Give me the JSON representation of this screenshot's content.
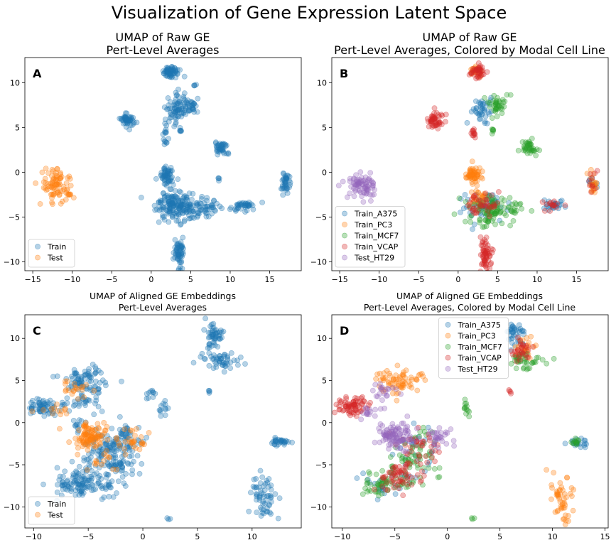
{
  "figure": {
    "suptitle": "Visualization of Gene Expression Latent Space"
  },
  "colors": {
    "train": "#1f77b4",
    "test": "#ff7f0e",
    "Train_A375": "#1f77b4",
    "Train_PC3": "#ff7f0e",
    "Train_MCF7": "#2ca02c",
    "Train_VCAP": "#d62728",
    "Test_HT29": "#9467bd"
  },
  "chart_data": [
    {
      "panel": "A",
      "type": "scatter",
      "title": "UMAP of  Raw GE",
      "subtitle": "Pert-Level Averages",
      "xlim": [
        -16,
        19
      ],
      "ylim": [
        -11,
        12.8
      ],
      "xticks": [
        -15,
        -10,
        -5,
        0,
        5,
        10,
        15
      ],
      "yticks": [
        10,
        5,
        0,
        -5,
        -10
      ],
      "legend": {
        "position": "lower-left",
        "entries": [
          "Train",
          "Test"
        ]
      },
      "series": [
        {
          "name": "Train",
          "color_key": "train",
          "clusters": [
            {
              "cx": 2.5,
              "cy": 11.2,
              "sx": 0.5,
              "sy": 0.3,
              "n": 60
            },
            {
              "cx": 3.0,
              "cy": 7.0,
              "sx": 0.6,
              "sy": 0.8,
              "n": 60
            },
            {
              "cx": 5.0,
              "cy": 7.5,
              "sx": 0.6,
              "sy": 0.5,
              "n": 40
            },
            {
              "cx": -3.0,
              "cy": 5.8,
              "sx": 0.5,
              "sy": 0.4,
              "n": 50
            },
            {
              "cx": 1.8,
              "cy": 4.0,
              "sx": 0.15,
              "sy": 0.6,
              "n": 15
            },
            {
              "cx": 3.8,
              "cy": 4.7,
              "sx": 0.15,
              "sy": 0.15,
              "n": 6
            },
            {
              "cx": 8.9,
              "cy": 2.7,
              "sx": 0.4,
              "sy": 0.4,
              "n": 40
            },
            {
              "cx": 2.0,
              "cy": -0.3,
              "sx": 0.5,
              "sy": 0.5,
              "n": 60
            },
            {
              "cx": 3.2,
              "cy": -3.7,
              "sx": 1.3,
              "sy": 0.8,
              "n": 160
            },
            {
              "cx": 6.5,
              "cy": -4.0,
              "sx": 1.3,
              "sy": 0.5,
              "n": 60
            },
            {
              "cx": 3.5,
              "cy": -9.0,
              "sx": 0.35,
              "sy": 0.9,
              "n": 60
            },
            {
              "cx": 12.0,
              "cy": -3.7,
              "sx": 0.8,
              "sy": 0.3,
              "n": 40
            },
            {
              "cx": 17.0,
              "cy": -1.3,
              "sx": 0.3,
              "sy": 0.6,
              "n": 40
            },
            {
              "cx": 8.5,
              "cy": -0.8,
              "sx": 0.1,
              "sy": 0.1,
              "n": 4
            },
            {
              "cx": 5.5,
              "cy": 9.7,
              "sx": 0.1,
              "sy": 0.1,
              "n": 4
            }
          ]
        },
        {
          "name": "Test",
          "color_key": "test",
          "clusters": [
            {
              "cx": -12.0,
              "cy": -1.5,
              "sx": 1.0,
              "sy": 0.8,
              "n": 80
            },
            {
              "cx": -10.2,
              "cy": -2.5,
              "sx": 0.2,
              "sy": 0.2,
              "n": 6
            }
          ]
        }
      ]
    },
    {
      "panel": "B",
      "type": "scatter",
      "title": "UMAP of Raw GE",
      "subtitle": "Pert-Level Averages, Colored by Modal Cell Line",
      "xlim": [
        -16,
        19
      ],
      "ylim": [
        -11,
        12.8
      ],
      "xticks": [
        -15,
        -10,
        -5,
        0,
        5,
        10,
        15
      ],
      "yticks": [
        10,
        5,
        0,
        -5,
        -10
      ],
      "legend": {
        "position": "lower-left",
        "entries": [
          "Train_A375",
          "Train_PC3",
          "Train_MCF7",
          "Train_VCAP",
          "Test_HT29"
        ]
      },
      "series": [
        {
          "name": "Train_A375",
          "color_key": "Train_A375",
          "clusters": [
            {
              "cx": 3.0,
              "cy": 7.0,
              "sx": 0.6,
              "sy": 0.8,
              "n": 40
            },
            {
              "cx": 3.2,
              "cy": -3.7,
              "sx": 1.3,
              "sy": 0.8,
              "n": 50
            },
            {
              "cx": 12.0,
              "cy": -3.7,
              "sx": 0.8,
              "sy": 0.3,
              "n": 25
            },
            {
              "cx": 17.0,
              "cy": -1.3,
              "sx": 0.3,
              "sy": 0.6,
              "n": 10
            }
          ]
        },
        {
          "name": "Train_PC3",
          "color_key": "Train_PC3",
          "clusters": [
            {
              "cx": 2.0,
              "cy": -0.3,
              "sx": 0.5,
              "sy": 0.5,
              "n": 60
            },
            {
              "cx": 2.5,
              "cy": 11.2,
              "sx": 0.5,
              "sy": 0.3,
              "n": 20
            },
            {
              "cx": 17.0,
              "cy": -1.3,
              "sx": 0.3,
              "sy": 0.6,
              "n": 20
            },
            {
              "cx": 2.5,
              "cy": -3.0,
              "sx": 0.8,
              "sy": 0.6,
              "n": 30
            }
          ]
        },
        {
          "name": "Train_MCF7",
          "color_key": "Train_MCF7",
          "clusters": [
            {
              "cx": 5.0,
              "cy": 7.5,
              "sx": 0.6,
              "sy": 0.5,
              "n": 40
            },
            {
              "cx": 8.9,
              "cy": 2.7,
              "sx": 0.4,
              "sy": 0.4,
              "n": 40
            },
            {
              "cx": 4.0,
              "cy": -4.5,
              "sx": 1.3,
              "sy": 0.8,
              "n": 80
            },
            {
              "cx": 6.5,
              "cy": -4.0,
              "sx": 1.3,
              "sy": 0.5,
              "n": 30
            },
            {
              "cx": 4.3,
              "cy": 4.7,
              "sx": 0.15,
              "sy": 0.15,
              "n": 6
            }
          ]
        },
        {
          "name": "Train_VCAP",
          "color_key": "Train_VCAP",
          "clusters": [
            {
              "cx": -3.0,
              "cy": 5.8,
              "sx": 0.5,
              "sy": 0.4,
              "n": 50
            },
            {
              "cx": 3.5,
              "cy": -9.0,
              "sx": 0.35,
              "sy": 0.9,
              "n": 60
            },
            {
              "cx": 2.5,
              "cy": 11.2,
              "sx": 0.5,
              "sy": 0.3,
              "n": 40
            },
            {
              "cx": 2.0,
              "cy": 4.0,
              "sx": 0.15,
              "sy": 0.6,
              "n": 12
            },
            {
              "cx": 3.0,
              "cy": -3.8,
              "sx": 1.2,
              "sy": 0.7,
              "n": 40
            },
            {
              "cx": 12.0,
              "cy": -3.7,
              "sx": 0.8,
              "sy": 0.3,
              "n": 15
            },
            {
              "cx": 17.0,
              "cy": -1.3,
              "sx": 0.3,
              "sy": 0.6,
              "n": 10
            }
          ]
        },
        {
          "name": "Test_HT29",
          "color_key": "Test_HT29",
          "clusters": [
            {
              "cx": -12.0,
              "cy": -1.5,
              "sx": 1.0,
              "sy": 0.8,
              "n": 80
            }
          ]
        }
      ]
    },
    {
      "panel": "C",
      "type": "scatter",
      "title": "UMAP of Aligned GE Embeddings",
      "subtitle": "Pert-Level Averages",
      "xlim": [
        -10.8,
        14.5
      ],
      "ylim": [
        -12.5,
        12.8
      ],
      "xticks": [
        -10,
        -5,
        0,
        5,
        10
      ],
      "yticks": [
        10,
        5,
        0,
        -5,
        -10
      ],
      "legend": {
        "position": "lower-left",
        "entries": [
          "Train",
          "Test"
        ]
      },
      "series": [
        {
          "name": "Train",
          "color_key": "train",
          "clusters": [
            {
              "cx": 6.5,
              "cy": 10.5,
              "sx": 0.4,
              "sy": 0.8,
              "n": 50
            },
            {
              "cx": 7.5,
              "cy": 7.3,
              "sx": 1.0,
              "sy": 0.5,
              "n": 50
            },
            {
              "cx": -5.0,
              "cy": 5.0,
              "sx": 1.3,
              "sy": 0.8,
              "n": 80
            },
            {
              "cx": -9.0,
              "cy": 2.0,
              "sx": 0.8,
              "sy": 0.5,
              "n": 60
            },
            {
              "cx": -5.5,
              "cy": 2.5,
              "sx": 1.0,
              "sy": 0.6,
              "n": 30
            },
            {
              "cx": 0.8,
              "cy": 3.3,
              "sx": 0.3,
              "sy": 0.3,
              "n": 10
            },
            {
              "cx": 1.8,
              "cy": 1.5,
              "sx": 0.3,
              "sy": 0.6,
              "n": 12
            },
            {
              "cx": -3.0,
              "cy": -4.0,
              "sx": 1.2,
              "sy": 1.5,
              "n": 150
            },
            {
              "cx": -5.5,
              "cy": -7.3,
              "sx": 1.3,
              "sy": 0.7,
              "n": 120
            },
            {
              "cx": -1.5,
              "cy": -2.0,
              "sx": 0.8,
              "sy": 1.0,
              "n": 40
            },
            {
              "cx": 11.0,
              "cy": -9.0,
              "sx": 0.6,
              "sy": 1.3,
              "n": 60
            },
            {
              "cx": 12.5,
              "cy": -2.3,
              "sx": 0.5,
              "sy": 0.25,
              "n": 30
            },
            {
              "cx": -6.0,
              "cy": -0.5,
              "sx": 0.4,
              "sy": 0.4,
              "n": 12
            },
            {
              "cx": 6.0,
              "cy": 3.6,
              "sx": 0.1,
              "sy": 0.1,
              "n": 4
            },
            {
              "cx": 2.3,
              "cy": -11.4,
              "sx": 0.1,
              "sy": 0.1,
              "n": 3
            }
          ]
        },
        {
          "name": "Test",
          "color_key": "test",
          "clusters": [
            {
              "cx": -4.8,
              "cy": -1.5,
              "sx": 0.8,
              "sy": 0.7,
              "n": 100
            },
            {
              "cx": -1.0,
              "cy": -2.0,
              "sx": 0.7,
              "sy": 0.7,
              "n": 30
            },
            {
              "cx": -6.0,
              "cy": 4.0,
              "sx": 0.8,
              "sy": 0.6,
              "n": 20
            },
            {
              "cx": -8.0,
              "cy": 1.5,
              "sx": 0.6,
              "sy": 0.4,
              "n": 12
            },
            {
              "cx": -3.5,
              "cy": -4.5,
              "sx": 0.8,
              "sy": 0.8,
              "n": 15
            }
          ]
        }
      ]
    },
    {
      "panel": "D",
      "type": "scatter",
      "title": "UMAP of Aligned GE Embeddings",
      "subtitle": "Pert-Level Averages, Colored by Modal Cell Line",
      "xlim": [
        -11,
        15.3
      ],
      "ylim": [
        -12.5,
        12.8
      ],
      "xticks": [
        -10,
        -5,
        0,
        5,
        10,
        15
      ],
      "yticks": [
        10,
        5,
        0,
        -5,
        -10
      ],
      "legend": {
        "position": "upper-center",
        "entries": [
          "Train_A375",
          "Train_PC3",
          "Train_MCF7",
          "Train_VCAP",
          "Test_HT29"
        ]
      },
      "series": [
        {
          "name": "Train_A375",
          "color_key": "Train_A375",
          "clusters": [
            {
              "cx": 6.5,
              "cy": 10.5,
              "sx": 0.4,
              "sy": 0.8,
              "n": 40
            },
            {
              "cx": 12.5,
              "cy": -2.3,
              "sx": 0.5,
              "sy": 0.25,
              "n": 20
            },
            {
              "cx": -3.0,
              "cy": -4.0,
              "sx": 1.2,
              "sy": 1.5,
              "n": 30
            },
            {
              "cx": -5.5,
              "cy": -7.3,
              "sx": 1.3,
              "sy": 0.7,
              "n": 20
            }
          ]
        },
        {
          "name": "Train_PC3",
          "color_key": "Train_PC3",
          "clusters": [
            {
              "cx": -5.0,
              "cy": 5.0,
              "sx": 1.3,
              "sy": 0.8,
              "n": 70
            },
            {
              "cx": 11.0,
              "cy": -9.0,
              "sx": 0.6,
              "sy": 1.3,
              "n": 50
            },
            {
              "cx": 7.5,
              "cy": 9.0,
              "sx": 0.5,
              "sy": 0.8,
              "n": 25
            }
          ]
        },
        {
          "name": "Train_MCF7",
          "color_key": "Train_MCF7",
          "clusters": [
            {
              "cx": 7.5,
              "cy": 7.3,
              "sx": 1.0,
              "sy": 0.5,
              "n": 40
            },
            {
              "cx": -3.0,
              "cy": -4.0,
              "sx": 1.2,
              "sy": 1.5,
              "n": 60
            },
            {
              "cx": -6.0,
              "cy": -7.3,
              "sx": 1.3,
              "sy": 0.7,
              "n": 60
            },
            {
              "cx": 1.8,
              "cy": 1.5,
              "sx": 0.3,
              "sy": 0.6,
              "n": 12
            },
            {
              "cx": 12.5,
              "cy": -2.3,
              "sx": 0.5,
              "sy": 0.25,
              "n": 12
            },
            {
              "cx": 2.3,
              "cy": -11.4,
              "sx": 0.1,
              "sy": 0.1,
              "n": 3
            }
          ]
        },
        {
          "name": "Train_VCAP",
          "color_key": "Train_VCAP",
          "clusters": [
            {
              "cx": -9.0,
              "cy": 2.0,
              "sx": 0.8,
              "sy": 0.5,
              "n": 70
            },
            {
              "cx": -4.5,
              "cy": -6.5,
              "sx": 1.0,
              "sy": 0.8,
              "n": 60
            },
            {
              "cx": -2.5,
              "cy": -3.0,
              "sx": 1.0,
              "sy": 1.2,
              "n": 40
            },
            {
              "cx": 7.0,
              "cy": 8.5,
              "sx": 0.6,
              "sy": 0.8,
              "n": 30
            },
            {
              "cx": 6.0,
              "cy": 3.6,
              "sx": 0.1,
              "sy": 0.1,
              "n": 4
            }
          ]
        },
        {
          "name": "Test_HT29",
          "color_key": "Test_HT29",
          "clusters": [
            {
              "cx": -4.8,
              "cy": -1.5,
              "sx": 0.8,
              "sy": 0.7,
              "n": 100
            },
            {
              "cx": -1.0,
              "cy": -2.0,
              "sx": 0.7,
              "sy": 0.7,
              "n": 30
            },
            {
              "cx": -6.0,
              "cy": 3.5,
              "sx": 0.8,
              "sy": 0.6,
              "n": 20
            },
            {
              "cx": -7.5,
              "cy": 1.0,
              "sx": 0.6,
              "sy": 0.4,
              "n": 15
            }
          ]
        }
      ]
    }
  ]
}
